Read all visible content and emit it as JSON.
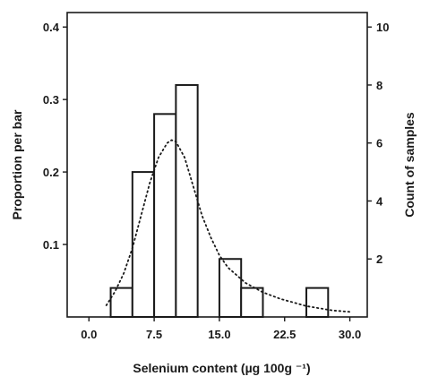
{
  "chart_data": {
    "type": "bar",
    "xlabel": "Selenium content (µg 100g ⁻¹)",
    "ylabel_left": "Proportion per bar",
    "ylabel_right": "Count of samples",
    "xlim": [
      -2.5,
      32
    ],
    "ylim_left": [
      0,
      0.42
    ],
    "ylim_right": [
      0,
      10.5
    ],
    "x_ticks": [
      0.0,
      7.5,
      15.0,
      22.5,
      30.0
    ],
    "x_tick_labels": [
      "0.0",
      "7.5",
      "15.0",
      "22.5",
      "30.0"
    ],
    "y_left_ticks": [
      0.1,
      0.2,
      0.3,
      0.4
    ],
    "y_left_tick_labels": [
      "0.1",
      "0.2",
      "0.3",
      "0.4"
    ],
    "y_right_ticks": [
      2,
      4,
      6,
      8,
      10
    ],
    "y_right_tick_labels": [
      "2",
      "4",
      "6",
      "8",
      "10"
    ],
    "bins": [
      {
        "x0": 2.5,
        "x1": 5.0,
        "count": 1
      },
      {
        "x0": 5.0,
        "x1": 7.5,
        "count": 5
      },
      {
        "x0": 7.5,
        "x1": 10.0,
        "count": 7
      },
      {
        "x0": 10.0,
        "x1": 12.5,
        "count": 8
      },
      {
        "x0": 15.0,
        "x1": 17.5,
        "count": 2
      },
      {
        "x0": 17.5,
        "x1": 20.0,
        "count": 1
      },
      {
        "x0": 25.0,
        "x1": 27.5,
        "count": 1
      }
    ],
    "density_curve": {
      "style": "dotted",
      "x": [
        2.0,
        3.0,
        4.0,
        5.0,
        6.0,
        7.0,
        8.0,
        9.0,
        9.5,
        10.0,
        11.0,
        12.0,
        13.0,
        14.0,
        15.0,
        16.0,
        18.0,
        20.0,
        22.0,
        25.0,
        28.0,
        30.0
      ],
      "y": [
        0.016,
        0.035,
        0.06,
        0.095,
        0.14,
        0.185,
        0.22,
        0.24,
        0.244,
        0.242,
        0.22,
        0.18,
        0.14,
        0.11,
        0.085,
        0.068,
        0.047,
        0.034,
        0.025,
        0.015,
        0.009,
        0.007
      ]
    },
    "grid": false,
    "legend": "none"
  }
}
